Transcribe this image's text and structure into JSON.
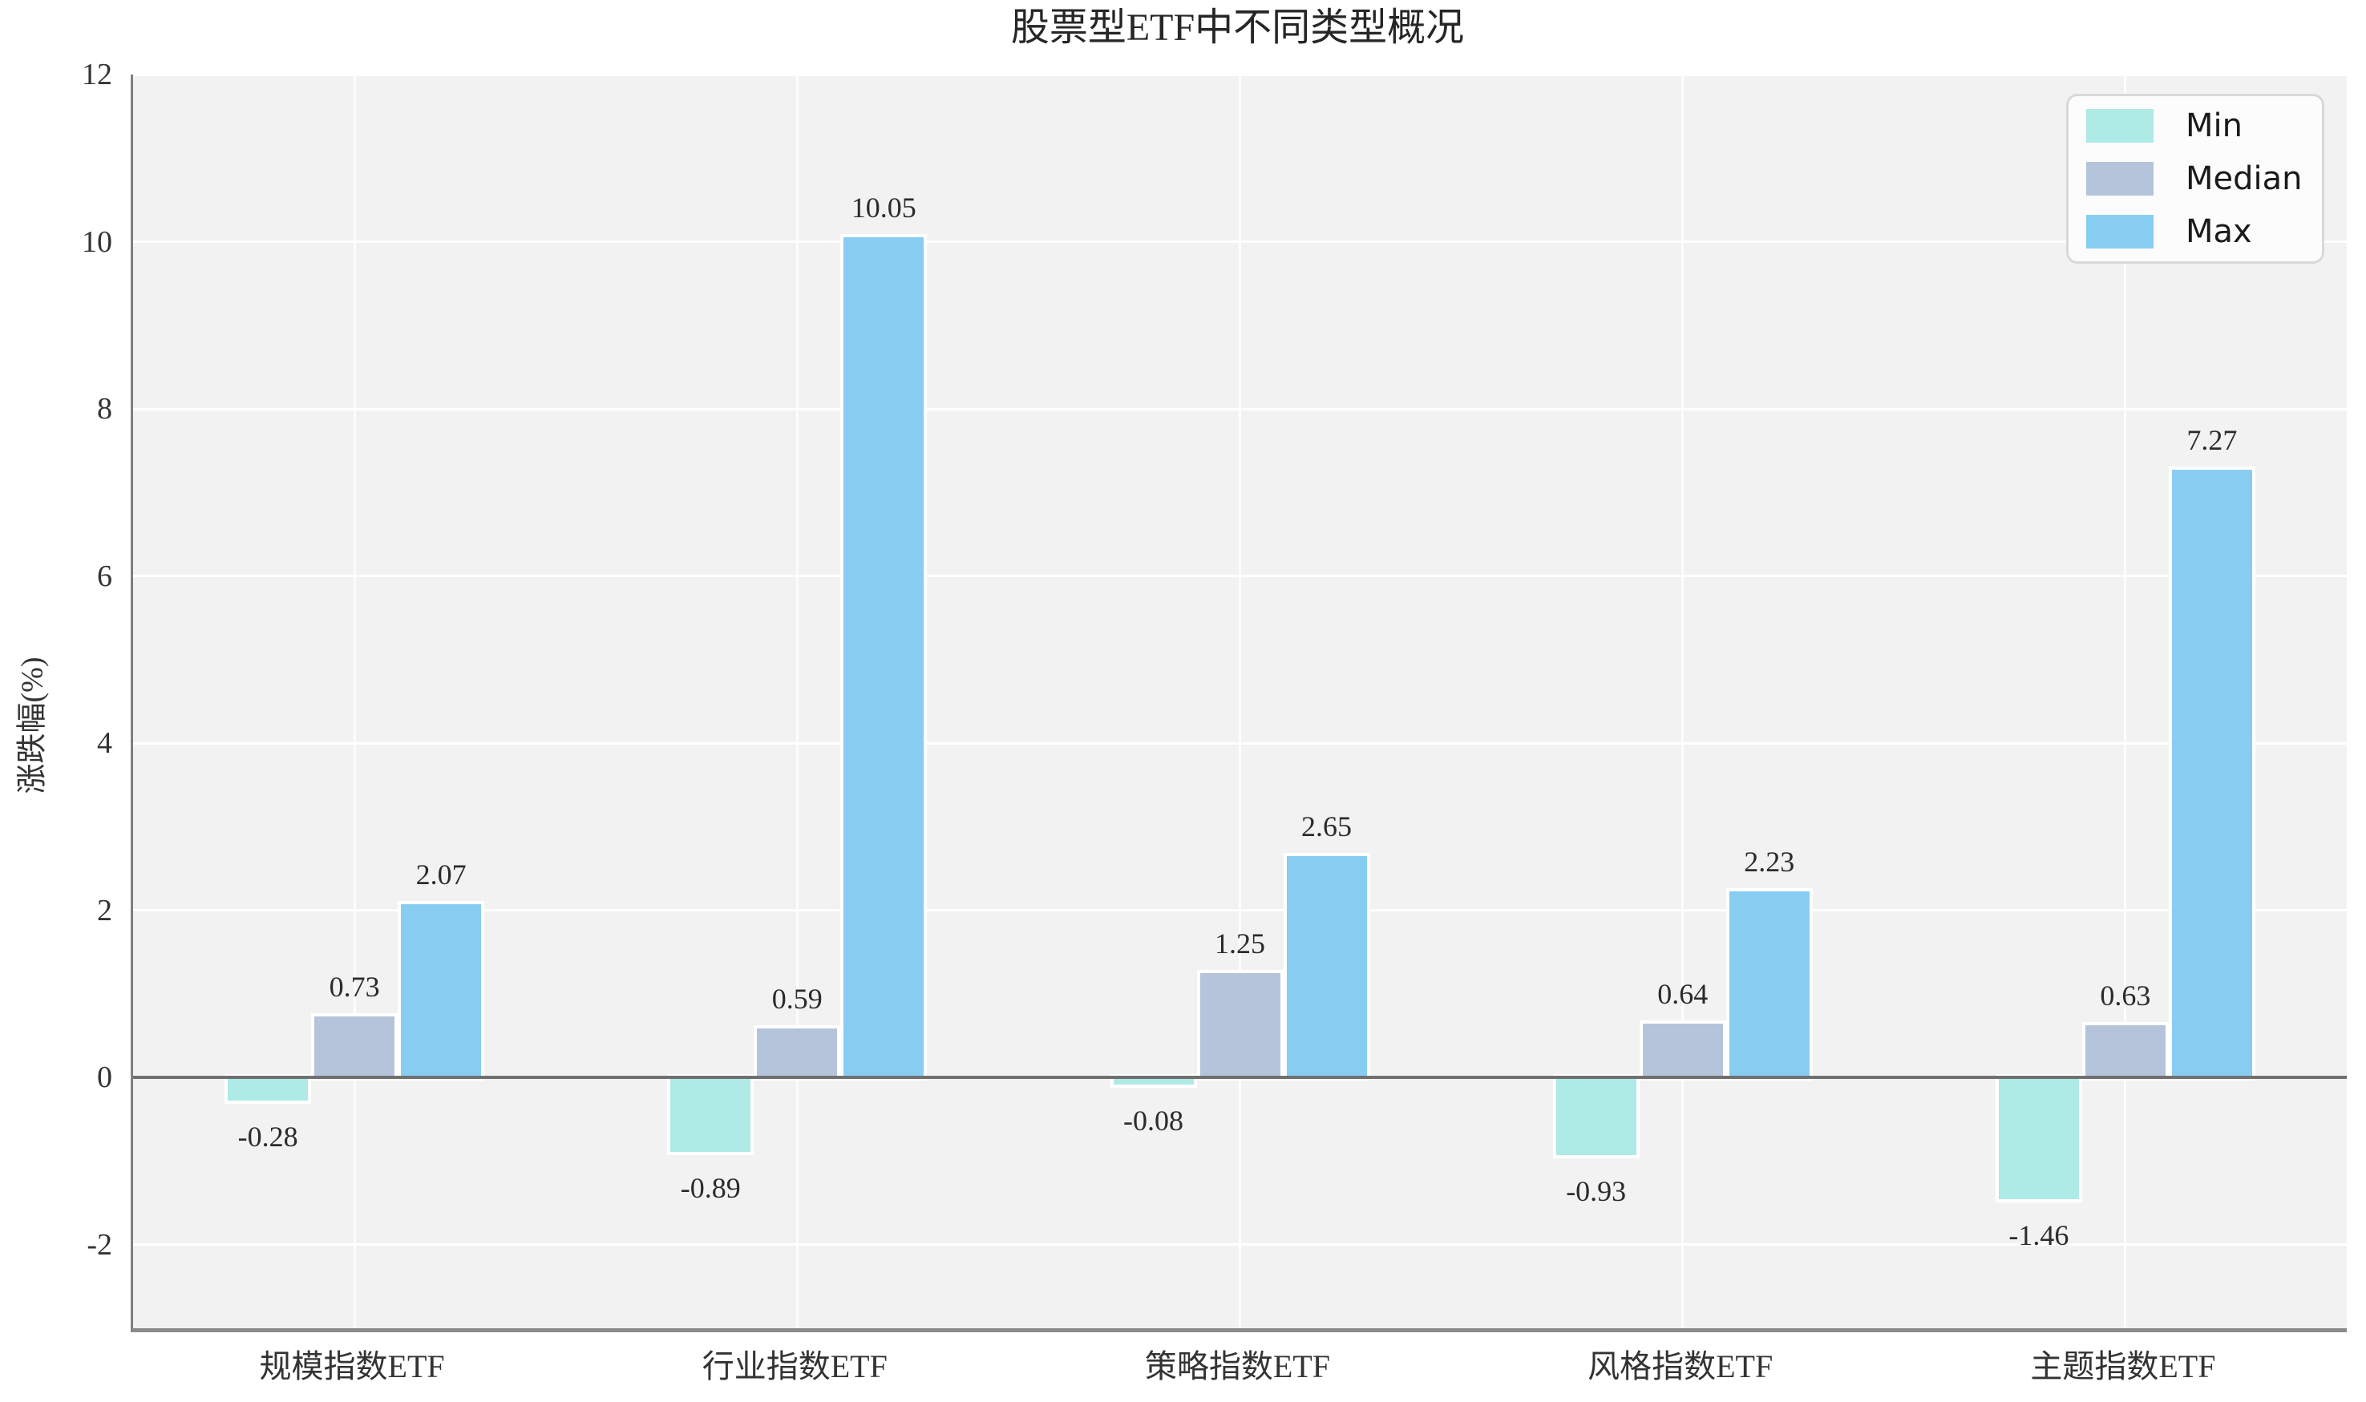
{
  "chart_data": {
    "type": "bar",
    "title": "股票型ETF中不同类型概况",
    "ylabel": "涨跌幅(%)",
    "xlabel": "",
    "categories": [
      "规模指数ETF",
      "行业指数ETF",
      "策略指数ETF",
      "风格指数ETF",
      "主题指数ETF"
    ],
    "series": [
      {
        "name": "Min",
        "color": "#AEEAE6",
        "values": [
          -0.28,
          -0.89,
          -0.08,
          -0.93,
          -1.46
        ]
      },
      {
        "name": "Median",
        "color": "#B5C4DA",
        "values": [
          0.73,
          0.59,
          1.25,
          0.64,
          0.63
        ]
      },
      {
        "name": "Max",
        "color": "#87CDF2",
        "values": [
          2.07,
          10.05,
          2.65,
          2.23,
          7.27
        ]
      }
    ],
    "value_label_format": "2 decimals, above positive bars, below negative bars",
    "ylim": [
      -3,
      12
    ],
    "yticks": [
      -2,
      0,
      2,
      4,
      6,
      8,
      10,
      12
    ],
    "grid": "white horizontal gridlines at yticks and white vertical gridlines at category centers on light gray plot background",
    "legend": {
      "position": "upper right",
      "labels": [
        "Min",
        "Median",
        "Max"
      ]
    },
    "style_colors": {
      "plot_background": "#F2F2F3",
      "figure_background": "#FFFFFF",
      "zero_line": "#707070",
      "spine": "#7F7F7F",
      "bar_edge": "#FFFFFF"
    }
  }
}
